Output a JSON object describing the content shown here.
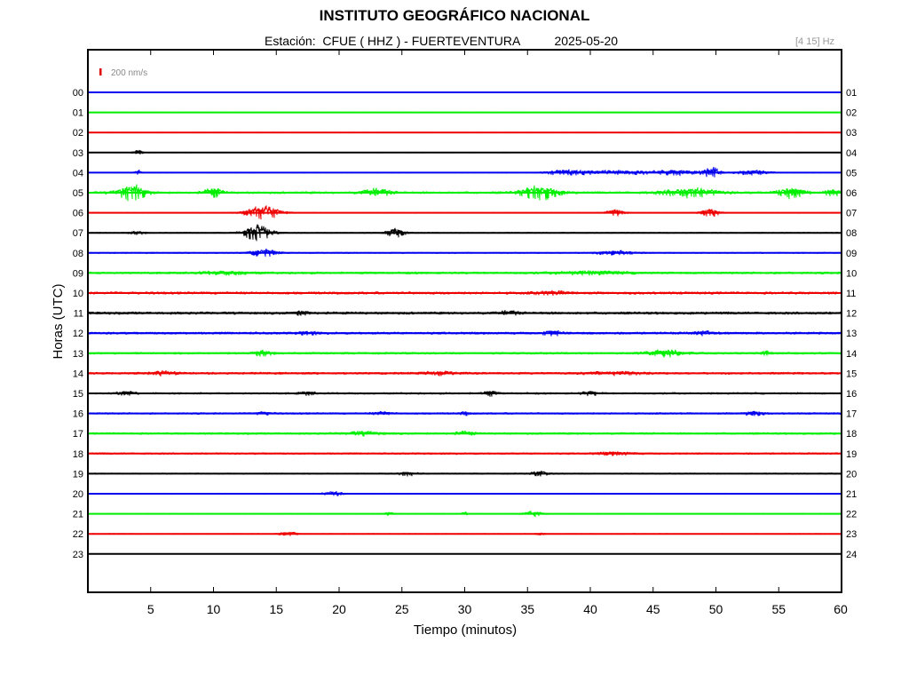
{
  "header": {
    "title": "INSTITUTO GEOGRÁFICO NACIONAL",
    "station_label": "Estación:",
    "station": "CFUE ( HHZ ) - FUERTEVENTURA",
    "date": "2025-05-20",
    "band": "[4 15] Hz"
  },
  "chart_data": {
    "type": "line",
    "title": "INSTITUTO GEOGRÁFICO NACIONAL",
    "xlabel": "Tiempo (minutos)",
    "ylabel": "Horas (UTC)",
    "xlim": [
      0,
      60
    ],
    "x_ticks": [
      5,
      10,
      15,
      20,
      25,
      30,
      35,
      40,
      45,
      50,
      55,
      60
    ],
    "grid": false,
    "scale_label": "200 nm/s",
    "scale_color": "#dd0000",
    "left_hour_labels": [
      "00",
      "01",
      "02",
      "03",
      "04",
      "05",
      "06",
      "07",
      "08",
      "09",
      "10",
      "11",
      "12",
      "13",
      "14",
      "15",
      "16",
      "17",
      "18",
      "19",
      "20",
      "21",
      "22",
      "23"
    ],
    "right_hour_labels": [
      "01",
      "02",
      "03",
      "04",
      "05",
      "06",
      "07",
      "08",
      "09",
      "10",
      "11",
      "12",
      "13",
      "14",
      "15",
      "16",
      "17",
      "18",
      "19",
      "20",
      "21",
      "22",
      "23",
      "24"
    ],
    "trace_colors": [
      "#0000ee",
      "#00ee00",
      "#ee0000",
      "#000000"
    ],
    "series": [
      {
        "hour": "00",
        "amplitude": 0.3,
        "bursts": []
      },
      {
        "hour": "01",
        "amplitude": 0.3,
        "bursts": []
      },
      {
        "hour": "02",
        "amplitude": 0.3,
        "bursts": []
      },
      {
        "hour": "03",
        "amplitude": 0.3,
        "bursts": [
          {
            "minute": 4,
            "width": 0.5,
            "amp": 4
          }
        ]
      },
      {
        "hour": "04",
        "amplitude": 0.4,
        "bursts": [
          {
            "minute": 4,
            "width": 0.4,
            "amp": 3
          },
          {
            "minute": 38,
            "width": 2,
            "amp": 3
          },
          {
            "minute": 42,
            "width": 4,
            "amp": 2.5
          },
          {
            "minute": 47,
            "width": 3,
            "amp": 3
          },
          {
            "minute": 49.7,
            "width": 0.8,
            "amp": 6
          },
          {
            "minute": 53,
            "width": 2,
            "amp": 2.5
          }
        ]
      },
      {
        "hour": "05",
        "amplitude": 1.2,
        "bursts": [
          {
            "minute": 3.5,
            "width": 1.5,
            "amp": 9
          },
          {
            "minute": 10,
            "width": 1,
            "amp": 5
          },
          {
            "minute": 23,
            "width": 1.5,
            "amp": 4
          },
          {
            "minute": 36,
            "width": 2,
            "amp": 8
          },
          {
            "minute": 48,
            "width": 3,
            "amp": 5
          },
          {
            "minute": 56,
            "width": 1.5,
            "amp": 6
          },
          {
            "minute": 59.3,
            "width": 0.8,
            "amp": 4
          }
        ]
      },
      {
        "hour": "06",
        "amplitude": 0.5,
        "bursts": [
          {
            "minute": 14,
            "width": 2,
            "amp": 8
          },
          {
            "minute": 42,
            "width": 1,
            "amp": 4
          },
          {
            "minute": 49.5,
            "width": 1,
            "amp": 5
          }
        ]
      },
      {
        "hour": "07",
        "amplitude": 0.6,
        "bursts": [
          {
            "minute": 4,
            "width": 0.8,
            "amp": 2
          },
          {
            "minute": 13.5,
            "width": 1.5,
            "amp": 9
          },
          {
            "minute": 24.5,
            "width": 1,
            "amp": 5
          }
        ]
      },
      {
        "hour": "08",
        "amplitude": 0.7,
        "bursts": [
          {
            "minute": 14,
            "width": 1.5,
            "amp": 4
          },
          {
            "minute": 42,
            "width": 2,
            "amp": 2.5
          }
        ]
      },
      {
        "hour": "09",
        "amplitude": 1.2,
        "bursts": [
          {
            "minute": 11,
            "width": 3,
            "amp": 1.5
          },
          {
            "minute": 40,
            "width": 4,
            "amp": 1.6
          }
        ]
      },
      {
        "hour": "10",
        "amplitude": 1.4,
        "bursts": [
          {
            "minute": 37,
            "width": 2,
            "amp": 1.5
          }
        ]
      },
      {
        "hour": "11",
        "amplitude": 1.4,
        "bursts": [
          {
            "minute": 17,
            "width": 1,
            "amp": 2
          },
          {
            "minute": 33.5,
            "width": 1,
            "amp": 2
          }
        ]
      },
      {
        "hour": "12",
        "amplitude": 1.3,
        "bursts": [
          {
            "minute": 17.5,
            "width": 1,
            "amp": 1.7
          },
          {
            "minute": 37,
            "width": 1,
            "amp": 2.5
          },
          {
            "minute": 49,
            "width": 1,
            "amp": 2
          }
        ]
      },
      {
        "hour": "13",
        "amplitude": 1.1,
        "bursts": [
          {
            "minute": 14,
            "width": 1,
            "amp": 3
          },
          {
            "minute": 46,
            "width": 2,
            "amp": 3.5
          },
          {
            "minute": 54,
            "width": 0.4,
            "amp": 3
          }
        ]
      },
      {
        "hour": "14",
        "amplitude": 1.2,
        "bursts": [
          {
            "minute": 6,
            "width": 1.5,
            "amp": 2
          },
          {
            "minute": 28,
            "width": 2,
            "amp": 1.7
          },
          {
            "minute": 42,
            "width": 3,
            "amp": 1.7
          }
        ]
      },
      {
        "hour": "15",
        "amplitude": 1.0,
        "bursts": [
          {
            "minute": 3,
            "width": 1,
            "amp": 2
          },
          {
            "minute": 17.5,
            "width": 1,
            "amp": 1.7
          },
          {
            "minute": 32,
            "width": 0.8,
            "amp": 2.5
          },
          {
            "minute": 40,
            "width": 1,
            "amp": 2
          }
        ]
      },
      {
        "hour": "16",
        "amplitude": 1.0,
        "bursts": [
          {
            "minute": 14,
            "width": 1,
            "amp": 1.5
          },
          {
            "minute": 23.5,
            "width": 1,
            "amp": 1.8
          },
          {
            "minute": 30,
            "width": 0.5,
            "amp": 1.8
          },
          {
            "minute": 53,
            "width": 1,
            "amp": 2.5
          }
        ]
      },
      {
        "hour": "17",
        "amplitude": 1.1,
        "bursts": [
          {
            "minute": 22,
            "width": 2,
            "amp": 1.8
          },
          {
            "minute": 30,
            "width": 1,
            "amp": 2
          }
        ]
      },
      {
        "hour": "18",
        "amplitude": 1.0,
        "bursts": [
          {
            "minute": 42,
            "width": 2,
            "amp": 1.7
          }
        ]
      },
      {
        "hour": "19",
        "amplitude": 0.7,
        "bursts": [
          {
            "minute": 25.5,
            "width": 1,
            "amp": 2.5
          },
          {
            "minute": 36,
            "width": 1,
            "amp": 2.5
          }
        ]
      },
      {
        "hour": "20",
        "amplitude": 0.6,
        "bursts": [
          {
            "minute": 19.5,
            "width": 1,
            "amp": 2.5
          }
        ]
      },
      {
        "hour": "21",
        "amplitude": 0.5,
        "bursts": [
          {
            "minute": 24,
            "width": 0.5,
            "amp": 2
          },
          {
            "minute": 30,
            "width": 0.3,
            "amp": 2
          },
          {
            "minute": 35.5,
            "width": 1,
            "amp": 3
          }
        ]
      },
      {
        "hour": "22",
        "amplitude": 0.4,
        "bursts": [
          {
            "minute": 16,
            "width": 1,
            "amp": 2.5
          },
          {
            "minute": 36,
            "width": 0.5,
            "amp": 1.5
          }
        ]
      },
      {
        "hour": "23",
        "amplitude": 0.2,
        "bursts": []
      }
    ]
  }
}
